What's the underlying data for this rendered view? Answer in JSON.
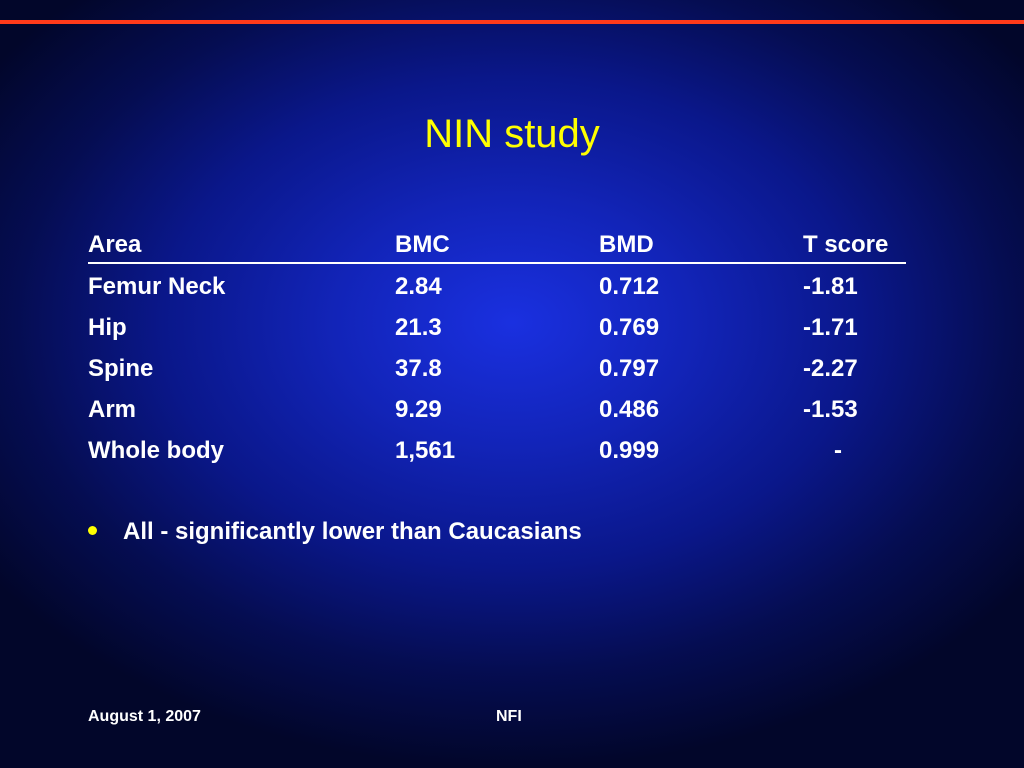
{
  "slide": {
    "title": "NIN study",
    "accent_color": "#ff3a1a",
    "title_color": "#ffff00",
    "background_color": "#1224b8"
  },
  "table": {
    "headers": {
      "area": "Area",
      "bmc": "BMC",
      "bmd": "BMD",
      "t_score": "T score"
    },
    "rows": [
      {
        "area": "Femur Neck",
        "bmc": "2.84",
        "bmd": "0.712",
        "t_score": "-1.81"
      },
      {
        "area": "Hip",
        "bmc": "21.3",
        "bmd": "0.769",
        "t_score": "-1.71"
      },
      {
        "area": "Spine",
        "bmc": "37.8",
        "bmd": "0.797",
        "t_score": "-2.27"
      },
      {
        "area": "Arm",
        "bmc": "9.29",
        "bmd": "0.486",
        "t_score": "-1.53"
      },
      {
        "area": "Whole body",
        "bmc": "1,561",
        "bmd": "0.999",
        "t_score": "-"
      }
    ]
  },
  "bullets": [
    "All - significantly lower than Caucasians"
  ],
  "footer": {
    "date": "August 1, 2007",
    "org": "NFI"
  }
}
